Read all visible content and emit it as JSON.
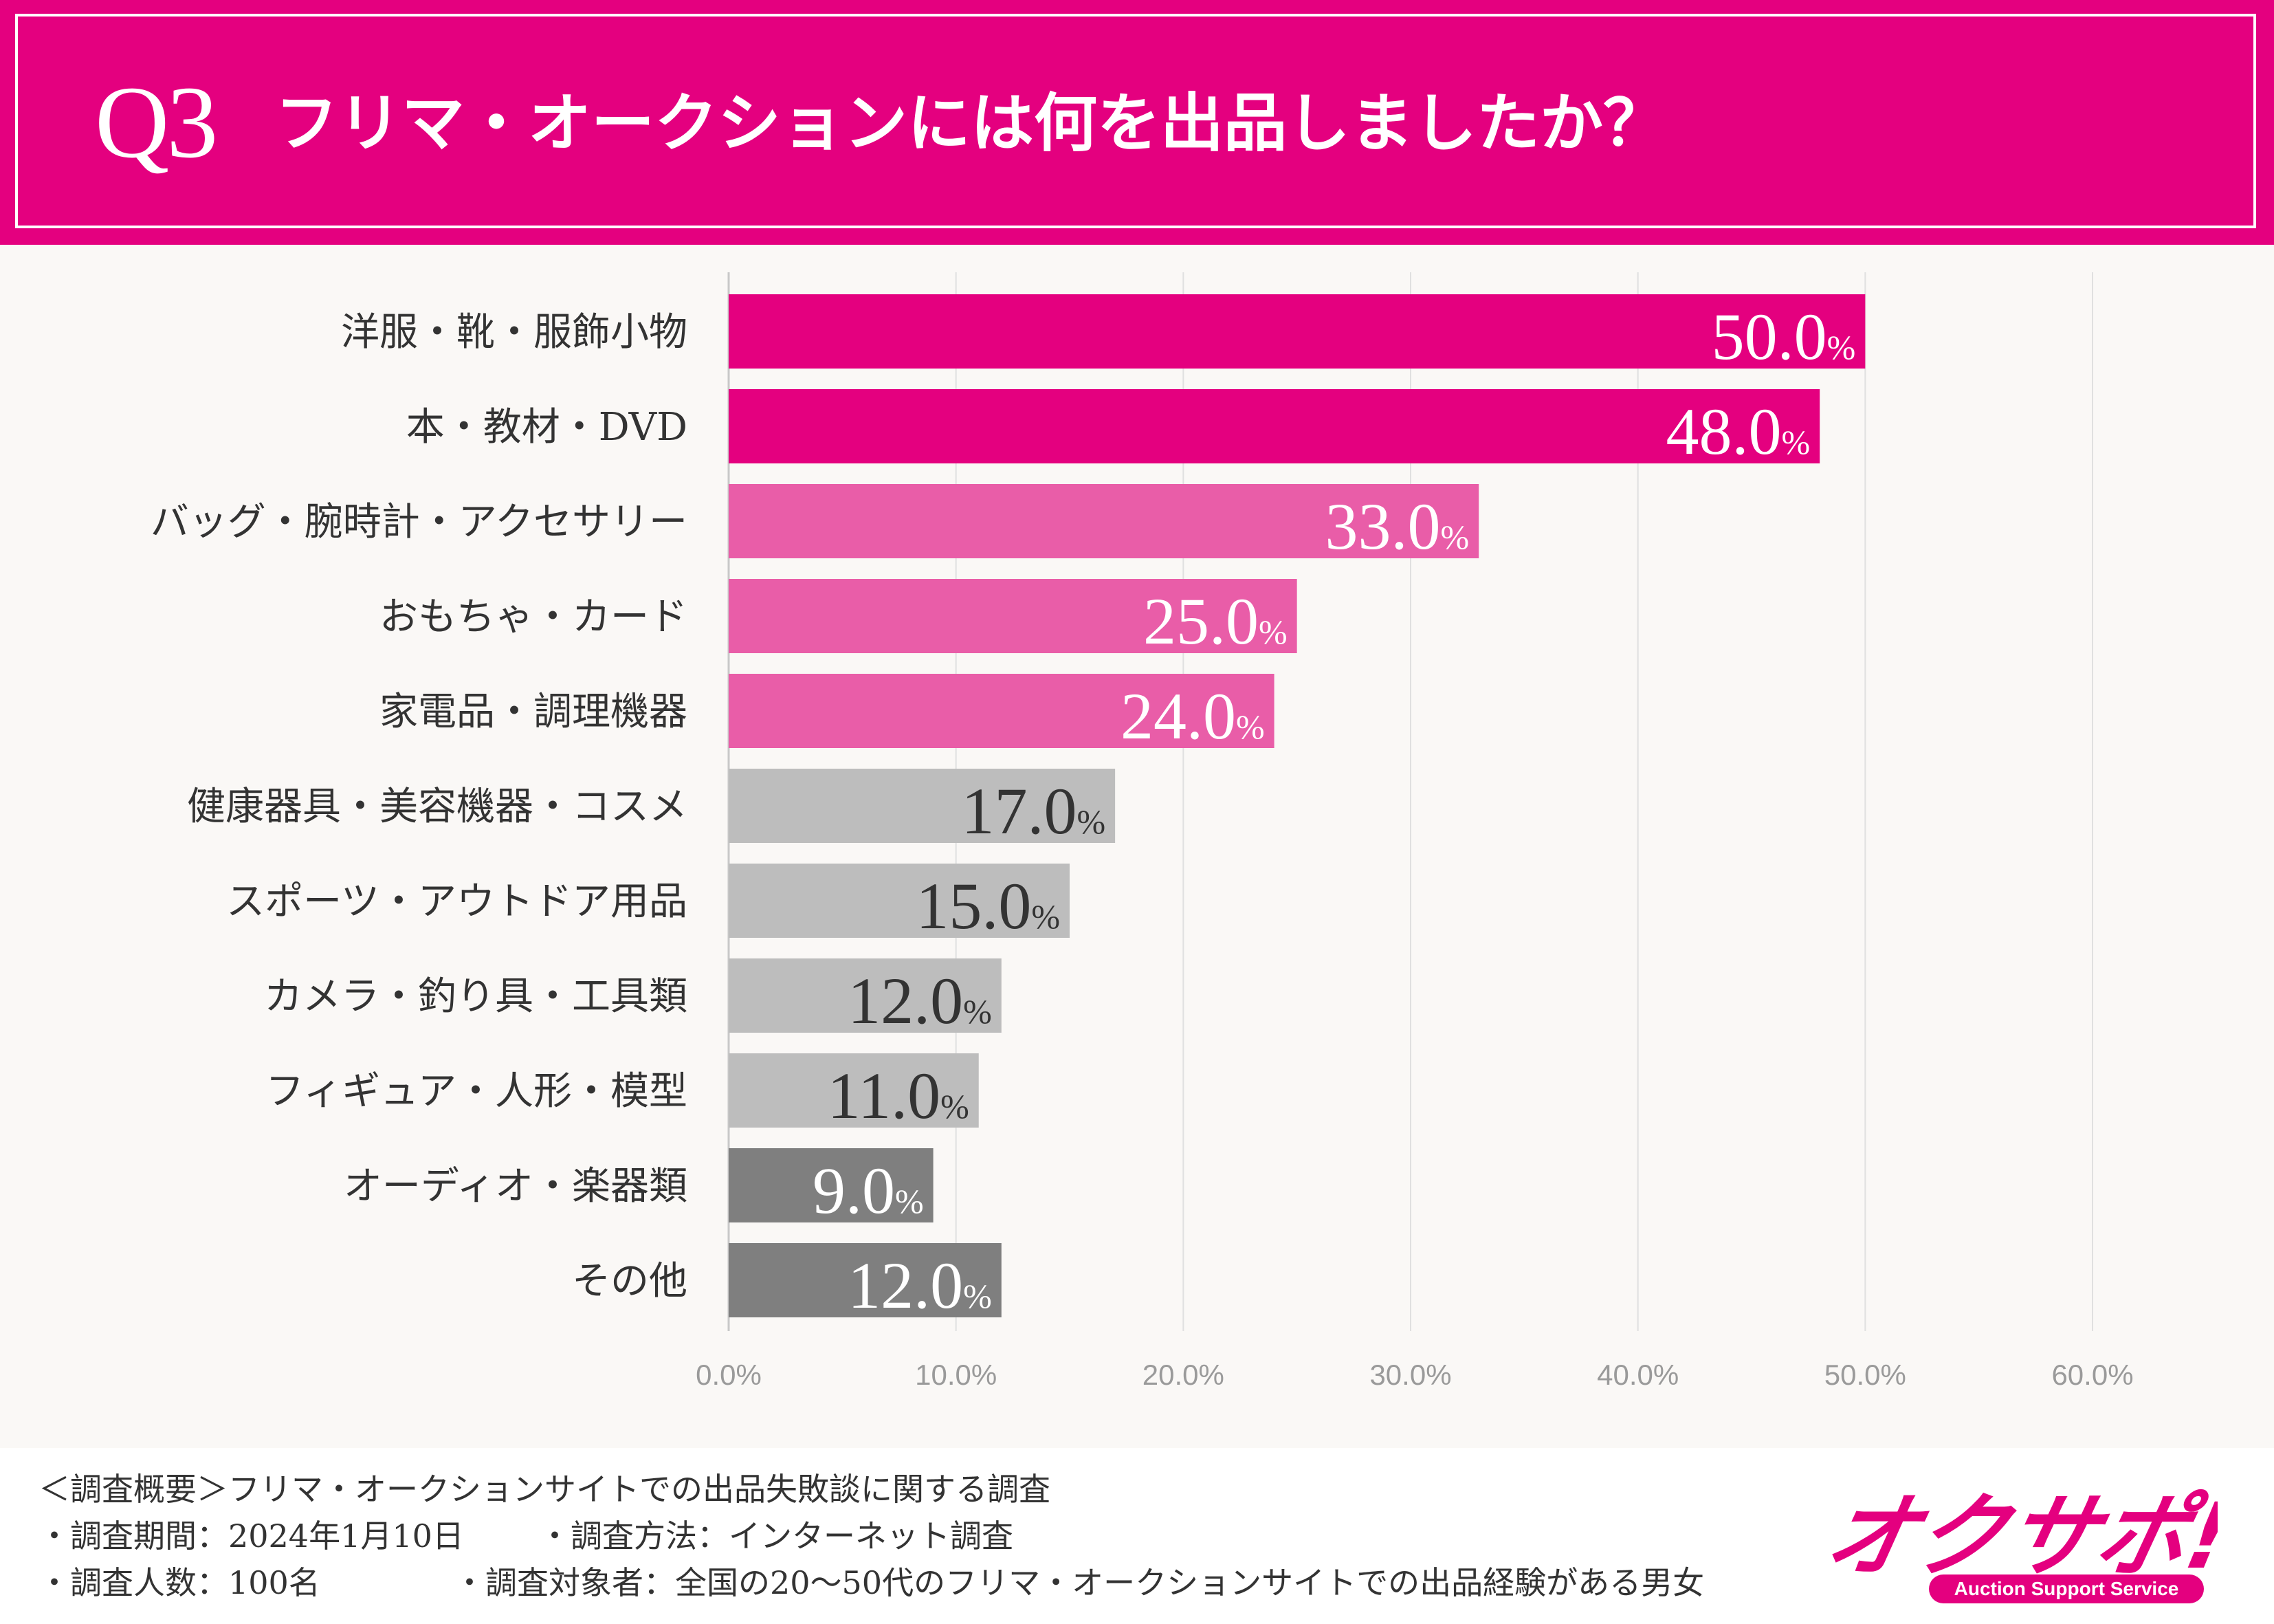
{
  "header": {
    "question_number": "Q3",
    "title": "フリマ・オークションには何を出品しましたか？"
  },
  "colors": {
    "accent": "#e4007f",
    "pink_light": "#e95da8",
    "gray_light": "#bdbdbd",
    "gray_dark": "#7f7f7f",
    "background": "#faf8f6"
  },
  "chart_data": {
    "type": "bar",
    "orientation": "horizontal",
    "title": "フリマ・オークションには何を出品しましたか？",
    "xlabel": "",
    "ylabel": "",
    "xlim": [
      0,
      60
    ],
    "grid": true,
    "x_ticks": [
      "0.0%",
      "10.0%",
      "20.0%",
      "30.0%",
      "40.0%",
      "50.0%",
      "60.0%"
    ],
    "categories": [
      "洋服・靴・服飾小物",
      "本・教材・DVD",
      "バッグ・腕時計・アクセサリー",
      "おもちゃ・カード",
      "家電品・調理機器",
      "健康器具・美容機器・コスメ",
      "スポーツ・アウトドア用品",
      "カメラ・釣り具・工具類",
      "フィギュア・人形・模型",
      "オーディオ・楽器類",
      "その他"
    ],
    "values": [
      50.0,
      48.0,
      33.0,
      25.0,
      24.0,
      17.0,
      15.0,
      12.0,
      11.0,
      9.0,
      12.0
    ],
    "value_labels": [
      "50.0",
      "48.0",
      "33.0",
      "25.0",
      "24.0",
      "17.0",
      "15.0",
      "12.0",
      "11.0",
      "9.0",
      "12.0"
    ],
    "unit": "%",
    "bar_color_groups": [
      "accent",
      "accent",
      "pink_light",
      "pink_light",
      "pink_light",
      "gray_light",
      "gray_light",
      "gray_light",
      "gray_light",
      "gray_dark",
      "gray_dark"
    ]
  },
  "footer": {
    "line1": "＜調査概要＞フリマ・オークションサイトでの出品失敗談に関する調査",
    "period": "・調査期間：2024年1月10日",
    "method": "・調査方法：インターネット調査",
    "count": "・調査人数：100名",
    "target": "・調査対象者：全国の20〜50代のフリマ・オークションサイトでの出品経験がある男女"
  },
  "logo": {
    "text": "オクサポ!",
    "subtext": "Auction Support Service"
  }
}
